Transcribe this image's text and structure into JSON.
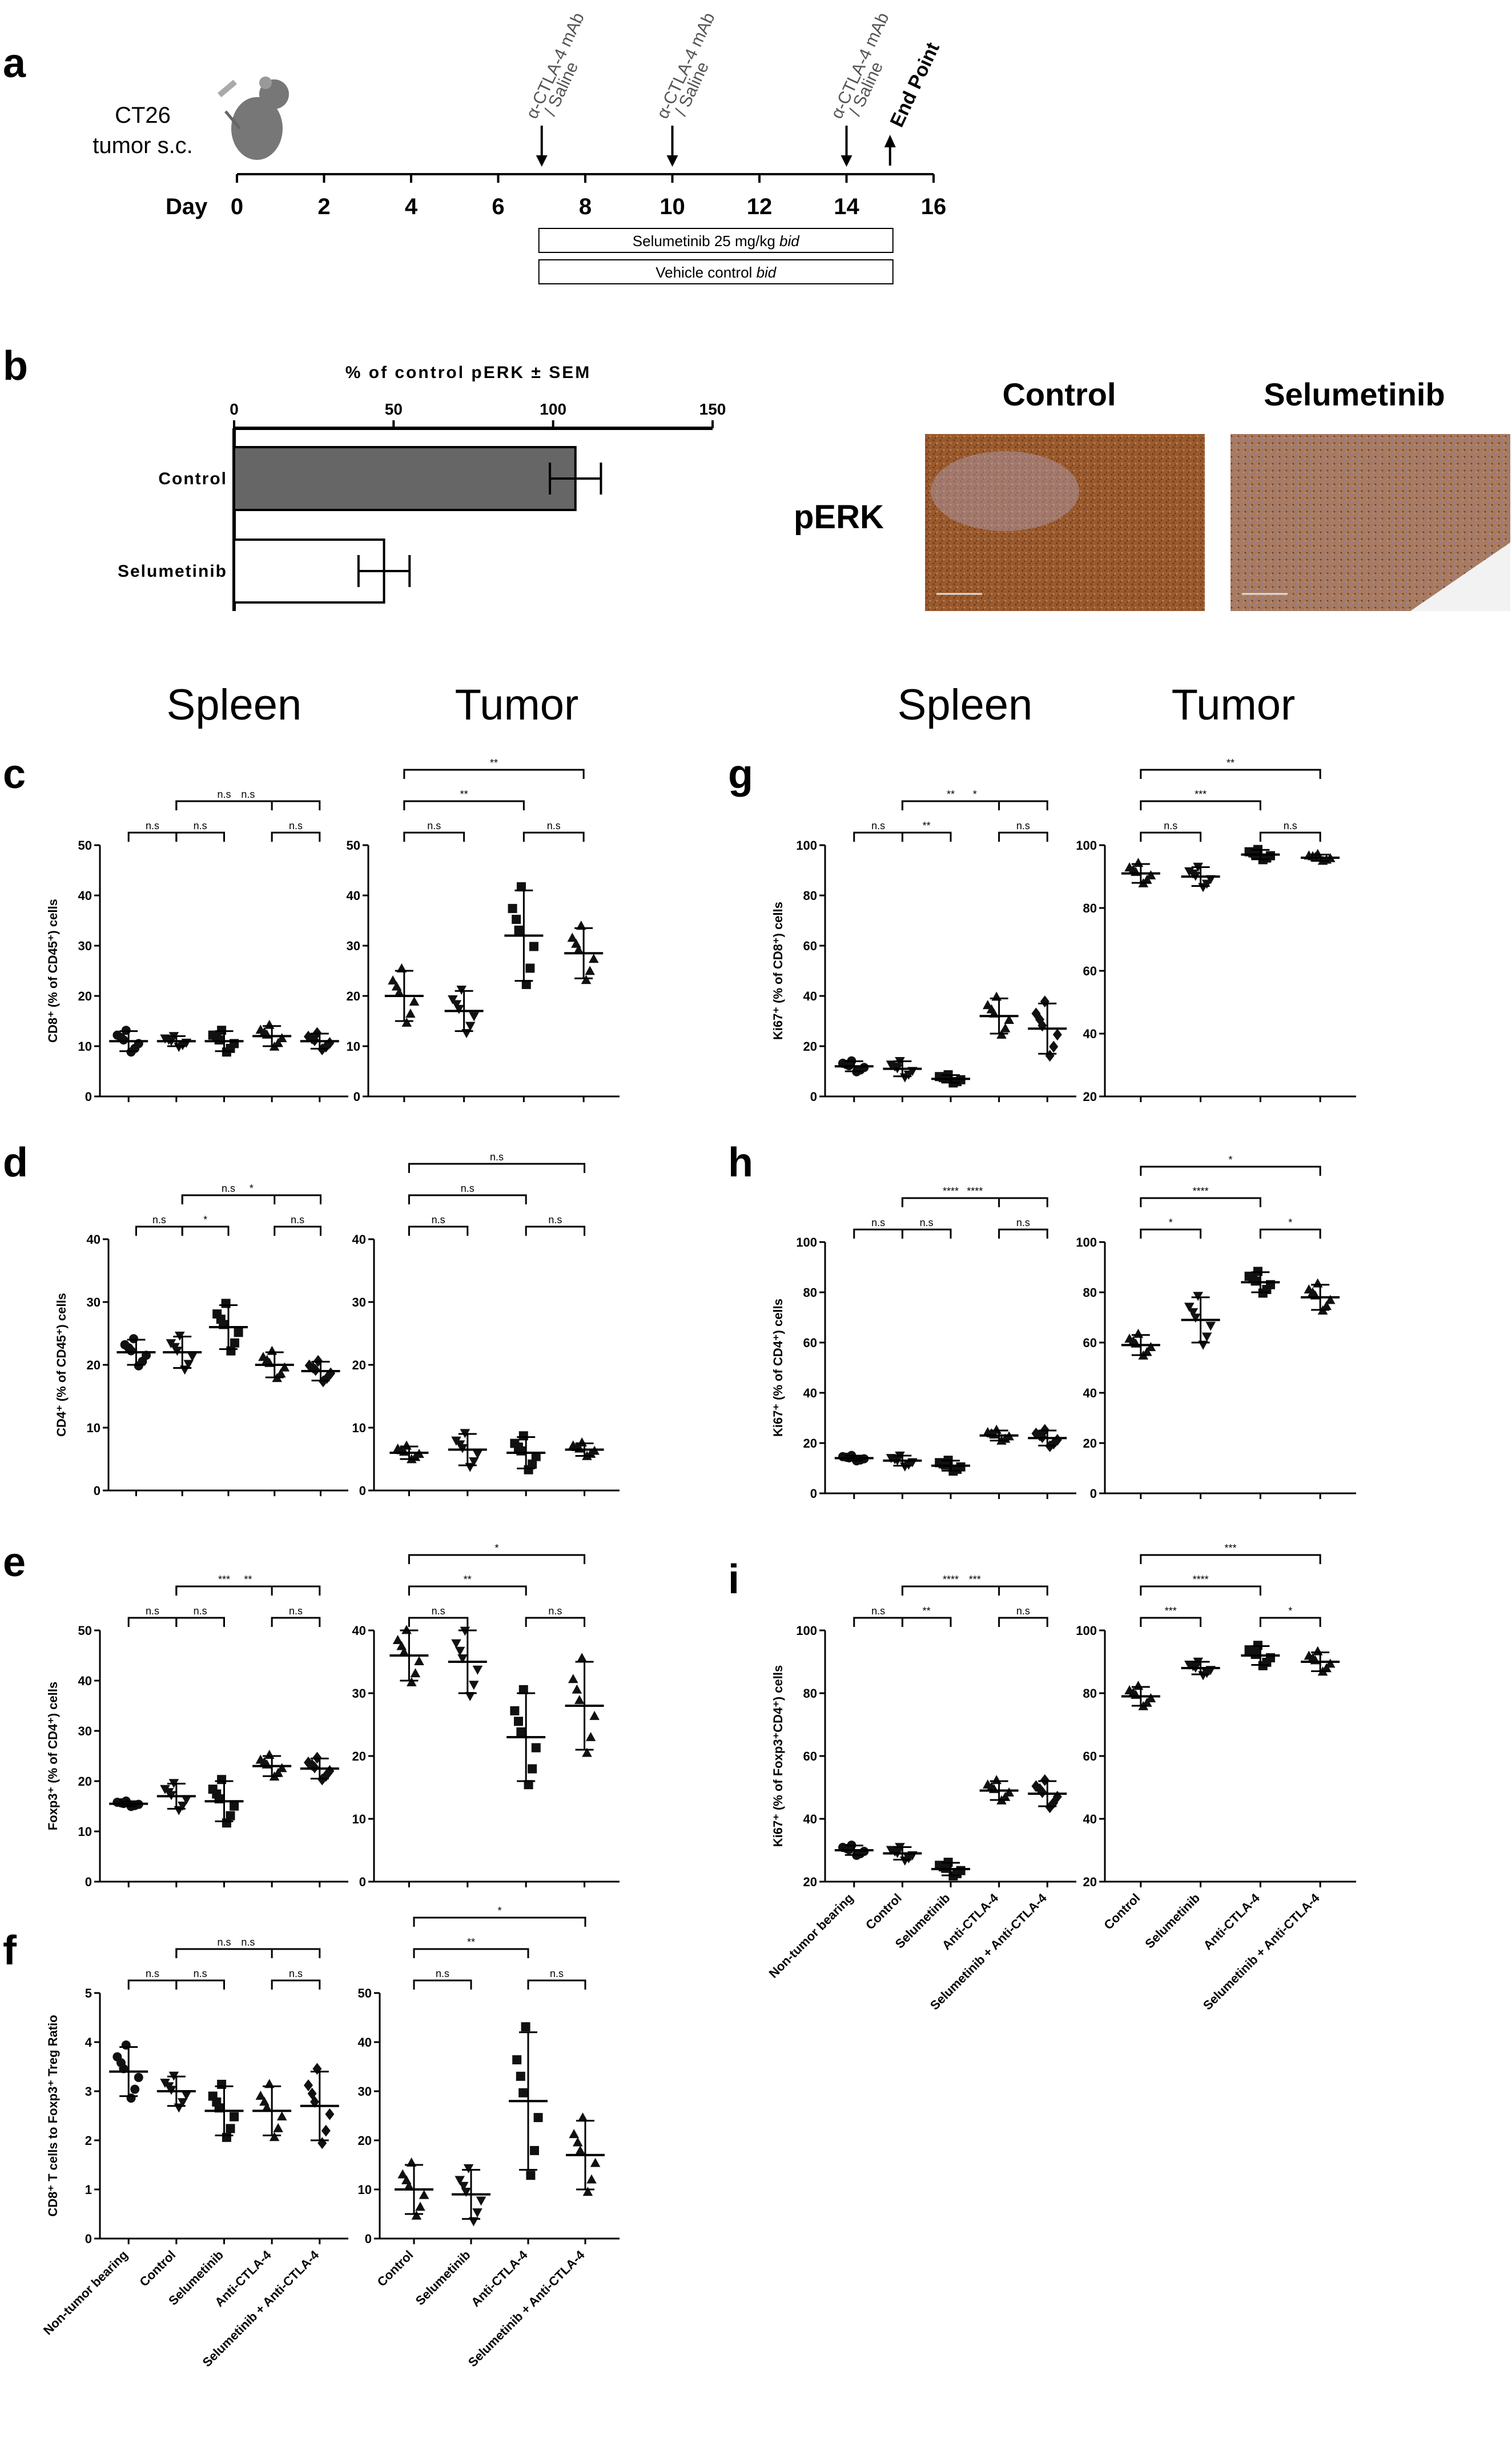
{
  "colors": {
    "bar_control": "#666666",
    "bar_selumetinib": "#ffffff",
    "ihc_brown": "#9a5a2e",
    "ink": "#000000"
  },
  "icons": {
    "mouse": "mouse-icon"
  },
  "panel_a": {
    "label": "a",
    "model": "CT26",
    "model_sub": "tumor s.c.",
    "day_label": "Day",
    "ticks": [
      "0",
      "2",
      "4",
      "6",
      "8",
      "10",
      "12",
      "14",
      "16"
    ],
    "doses": [
      {
        "day": 7,
        "text": "α-CTLA-4 mAb",
        "sub": "/ Saline"
      },
      {
        "day": 10,
        "text": "α-CTLA-4 mAb",
        "sub": "/ Saline"
      },
      {
        "day": 14,
        "text": "α-CTLA-4 mAb",
        "sub": "/ Saline"
      }
    ],
    "end_point": {
      "day": 15,
      "text": "End Point"
    },
    "bars": [
      {
        "text": "Selumetinib 25 mg/kg ",
        "italic": "bid",
        "start": 7,
        "end": 15
      },
      {
        "text": "Vehicle control ",
        "italic": "bid",
        "start": 7,
        "end": 15
      }
    ]
  },
  "panel_b": {
    "label": "b",
    "title": "% of control pERK ± SEM",
    "ticks": [
      "0",
      "50",
      "100",
      "150"
    ],
    "micro_row_label": "pERK",
    "micro_cols": [
      "Control",
      "Selumetinib"
    ]
  },
  "headers": {
    "spleen": "Spleen",
    "tumor": "Tumor"
  },
  "cat_spleen": [
    "Non-tumor bearing",
    "Control",
    "Selumetinib",
    "Anti-CTLA-4",
    "Selumetinib + Anti-CTLA-4"
  ],
  "cat_tumor": [
    "Control",
    "Selumetinib",
    "Anti-CTLA-4",
    "Selumetinib + Anti-CTLA-4"
  ],
  "chart_data": [
    {
      "type": "bar",
      "panel": "b",
      "title": "% of control pERK ± SEM",
      "categories": [
        "Control",
        "Selumetinib"
      ],
      "values": [
        107,
        47
      ],
      "sem": [
        8,
        8
      ],
      "xlim": [
        0,
        150
      ]
    },
    {
      "type": "scatter",
      "panel": "c",
      "tissue": "Spleen",
      "ylabel": "CD8⁺ (% of CD45⁺) cells",
      "ylim": [
        0,
        50
      ],
      "yticks": [
        0,
        10,
        20,
        30,
        40,
        50
      ],
      "categories": [
        "Non-tumor bearing",
        "Control",
        "Selumetinib",
        "Anti-CTLA-4",
        "Selumetinib + Anti-CTLA-4"
      ],
      "means": [
        11,
        11,
        11,
        12,
        11
      ],
      "sd": [
        2,
        1,
        2,
        2,
        1.5
      ],
      "brackets": [
        {
          "a": 0,
          "b": 1,
          "text": "n.s"
        },
        {
          "a": 1,
          "b": 2,
          "text": "n.s"
        },
        {
          "a": 1,
          "b": 3,
          "text": "n.s"
        },
        {
          "a": 3,
          "b": 4,
          "text": "n.s"
        },
        {
          "a": 1,
          "b": 4,
          "text": "n.s"
        }
      ]
    },
    {
      "type": "scatter",
      "panel": "c",
      "tissue": "Tumor",
      "ylim": [
        0,
        50
      ],
      "yticks": [
        0,
        10,
        20,
        30,
        40,
        50
      ],
      "categories": [
        "Control",
        "Selumetinib",
        "Anti-CTLA-4",
        "Selumetinib + Anti-CTLA-4"
      ],
      "means": [
        20,
        17,
        32,
        28.5
      ],
      "sd": [
        5,
        4,
        9,
        5
      ],
      "brackets": [
        {
          "a": 0,
          "b": 1,
          "text": "n.s"
        },
        {
          "a": 0,
          "b": 2,
          "text": "**"
        },
        {
          "a": 2,
          "b": 3,
          "text": "n.s"
        },
        {
          "a": 0,
          "b": 3,
          "text": "**"
        }
      ]
    },
    {
      "type": "scatter",
      "panel": "d",
      "tissue": "Spleen",
      "ylabel": "CD4⁺ (% of CD45⁺) cells",
      "ylim": [
        0,
        40
      ],
      "yticks": [
        0,
        10,
        20,
        30,
        40
      ],
      "categories": [
        "Non-tumor bearing",
        "Control",
        "Selumetinib",
        "Anti-CTLA-4",
        "Selumetinib + Anti-CTLA-4"
      ],
      "means": [
        22,
        22,
        26,
        20,
        19
      ],
      "sd": [
        2,
        2.5,
        3.5,
        2,
        1.5
      ],
      "brackets": [
        {
          "a": 0,
          "b": 1,
          "text": "n.s"
        },
        {
          "a": 1,
          "b": 2,
          "text": "*"
        },
        {
          "a": 1,
          "b": 3,
          "text": "n.s"
        },
        {
          "a": 3,
          "b": 4,
          "text": "n.s"
        },
        {
          "a": 1,
          "b": 4,
          "text": "*"
        }
      ]
    },
    {
      "type": "scatter",
      "panel": "d",
      "tissue": "Tumor",
      "ylim": [
        0,
        40
      ],
      "yticks": [
        0,
        10,
        20,
        30,
        40
      ],
      "categories": [
        "Control",
        "Selumetinib",
        "Anti-CTLA-4",
        "Selumetinib + Anti-CTLA-4"
      ],
      "means": [
        6,
        6.5,
        6,
        6.5
      ],
      "sd": [
        1,
        2.5,
        2.5,
        1
      ],
      "brackets": [
        {
          "a": 0,
          "b": 1,
          "text": "n.s"
        },
        {
          "a": 0,
          "b": 2,
          "text": "n.s"
        },
        {
          "a": 2,
          "b": 3,
          "text": "n.s"
        },
        {
          "a": 0,
          "b": 3,
          "text": "n.s"
        }
      ]
    },
    {
      "type": "scatter",
      "panel": "e",
      "tissue": "Spleen",
      "ylabel": "Foxp3⁺ (% of CD4⁺) cells",
      "ylim": [
        0,
        50
      ],
      "yticks": [
        0,
        10,
        20,
        30,
        40,
        50
      ],
      "categories": [
        "Non-tumor bearing",
        "Control",
        "Selumetinib",
        "Anti-CTLA-4",
        "Selumetinib + Anti-CTLA-4"
      ],
      "means": [
        15.5,
        17,
        16,
        23,
        22.5
      ],
      "sd": [
        0.5,
        2.5,
        4,
        2,
        2
      ],
      "brackets": [
        {
          "a": 0,
          "b": 1,
          "text": "n.s"
        },
        {
          "a": 1,
          "b": 2,
          "text": "n.s"
        },
        {
          "a": 1,
          "b": 3,
          "text": "***"
        },
        {
          "a": 3,
          "b": 4,
          "text": "n.s"
        },
        {
          "a": 1,
          "b": 4,
          "text": "**"
        }
      ]
    },
    {
      "type": "scatter",
      "panel": "e",
      "tissue": "Tumor",
      "ylim": [
        0,
        40
      ],
      "yticks": [
        0,
        10,
        20,
        30,
        40
      ],
      "categories": [
        "Control",
        "Selumetinib",
        "Anti-CTLA-4",
        "Selumetinib + Anti-CTLA-4"
      ],
      "means": [
        36,
        35,
        23,
        28
      ],
      "sd": [
        4,
        5,
        7,
        7
      ],
      "brackets": [
        {
          "a": 0,
          "b": 1,
          "text": "n.s"
        },
        {
          "a": 0,
          "b": 2,
          "text": "**"
        },
        {
          "a": 2,
          "b": 3,
          "text": "n.s"
        },
        {
          "a": 0,
          "b": 3,
          "text": "*"
        }
      ]
    },
    {
      "type": "scatter",
      "panel": "f",
      "tissue": "Spleen",
      "ylabel": "CD8⁺ T cells to Foxp3⁺ Treg Ratio",
      "ylim": [
        0,
        5
      ],
      "yticks": [
        0,
        1,
        2,
        3,
        4,
        5
      ],
      "categories": [
        "Non-tumor bearing",
        "Control",
        "Selumetinib",
        "Anti-CTLA-4",
        "Selumetinib + Anti-CTLA-4"
      ],
      "means": [
        3.4,
        3.0,
        2.6,
        2.6,
        2.7
      ],
      "sd": [
        0.5,
        0.3,
        0.5,
        0.5,
        0.7
      ],
      "brackets": [
        {
          "a": 0,
          "b": 1,
          "text": "n.s"
        },
        {
          "a": 1,
          "b": 2,
          "text": "n.s"
        },
        {
          "a": 1,
          "b": 3,
          "text": "n.s"
        },
        {
          "a": 3,
          "b": 4,
          "text": "n.s"
        },
        {
          "a": 1,
          "b": 4,
          "text": "n.s"
        }
      ]
    },
    {
      "type": "scatter",
      "panel": "f",
      "tissue": "Tumor",
      "ylim": [
        0,
        50
      ],
      "yticks": [
        0,
        10,
        20,
        30,
        40,
        50
      ],
      "categories": [
        "Control",
        "Selumetinib",
        "Anti-CTLA-4",
        "Selumetinib + Anti-CTLA-4"
      ],
      "means": [
        10,
        9,
        28,
        17
      ],
      "sd": [
        5,
        5,
        14,
        7
      ],
      "brackets": [
        {
          "a": 0,
          "b": 1,
          "text": "n.s"
        },
        {
          "a": 0,
          "b": 2,
          "text": "**"
        },
        {
          "a": 2,
          "b": 3,
          "text": "n.s"
        },
        {
          "a": 0,
          "b": 3,
          "text": "*"
        }
      ]
    },
    {
      "type": "scatter",
      "panel": "g",
      "tissue": "Spleen",
      "ylabel": "Ki67⁺ (% of CD8⁺) cells",
      "ylim": [
        0,
        100
      ],
      "yticks": [
        0,
        20,
        40,
        60,
        80,
        100
      ],
      "categories": [
        "Non-tumor bearing",
        "Control",
        "Selumetinib",
        "Anti-CTLA-4",
        "Selumetinib + Anti-CTLA-4"
      ],
      "means": [
        12,
        11,
        7,
        32,
        27
      ],
      "sd": [
        2,
        3,
        1.5,
        7,
        10
      ],
      "brackets": [
        {
          "a": 0,
          "b": 1,
          "text": "n.s"
        },
        {
          "a": 1,
          "b": 2,
          "text": "**"
        },
        {
          "a": 1,
          "b": 3,
          "text": "**"
        },
        {
          "a": 3,
          "b": 4,
          "text": "n.s"
        },
        {
          "a": 1,
          "b": 4,
          "text": "*"
        }
      ]
    },
    {
      "type": "scatter",
      "panel": "g",
      "tissue": "Tumor",
      "ylim": [
        20,
        100
      ],
      "yticks": [
        20,
        40,
        60,
        80,
        100
      ],
      "categories": [
        "Control",
        "Selumetinib",
        "Anti-CTLA-4",
        "Selumetinib + Anti-CTLA-4"
      ],
      "means": [
        91,
        90,
        97,
        96
      ],
      "sd": [
        3,
        3,
        1.5,
        1
      ],
      "brackets": [
        {
          "a": 0,
          "b": 1,
          "text": "n.s"
        },
        {
          "a": 0,
          "b": 2,
          "text": "***"
        },
        {
          "a": 2,
          "b": 3,
          "text": "n.s"
        },
        {
          "a": 0,
          "b": 3,
          "text": "**"
        }
      ]
    },
    {
      "type": "scatter",
      "panel": "h",
      "tissue": "Spleen",
      "ylabel": "Ki67⁺ (% of CD4⁺) cells",
      "ylim": [
        0,
        100
      ],
      "yticks": [
        0,
        20,
        40,
        60,
        80,
        100
      ],
      "categories": [
        "Non-tumor bearing",
        "Control",
        "Selumetinib",
        "Anti-CTLA-4",
        "Selumetinib + Anti-CTLA-4"
      ],
      "means": [
        14,
        13,
        11,
        23,
        22
      ],
      "sd": [
        1,
        2,
        2,
        2,
        3
      ],
      "brackets": [
        {
          "a": 0,
          "b": 1,
          "text": "n.s"
        },
        {
          "a": 1,
          "b": 2,
          "text": "n.s"
        },
        {
          "a": 1,
          "b": 3,
          "text": "****"
        },
        {
          "a": 3,
          "b": 4,
          "text": "n.s"
        },
        {
          "a": 1,
          "b": 4,
          "text": "****"
        }
      ]
    },
    {
      "type": "scatter",
      "panel": "h",
      "tissue": "Tumor",
      "ylim": [
        0,
        100
      ],
      "yticks": [
        0,
        20,
        40,
        60,
        80,
        100
      ],
      "categories": [
        "Control",
        "Selumetinib",
        "Anti-CTLA-4",
        "Selumetinib + Anti-CTLA-4"
      ],
      "means": [
        59,
        69,
        84,
        78
      ],
      "sd": [
        4,
        9,
        4,
        5
      ],
      "brackets": [
        {
          "a": 0,
          "b": 1,
          "text": "*"
        },
        {
          "a": 0,
          "b": 2,
          "text": "****"
        },
        {
          "a": 2,
          "b": 3,
          "text": "*"
        },
        {
          "a": 0,
          "b": 3,
          "text": "*"
        }
      ]
    },
    {
      "type": "scatter",
      "panel": "i",
      "tissue": "Spleen",
      "ylabel": "Ki67⁺ (% of Foxp3⁺CD4⁺) cells",
      "ylim": [
        20,
        100
      ],
      "yticks": [
        20,
        40,
        60,
        80,
        100
      ],
      "categories": [
        "Non-tumor bearing",
        "Control",
        "Selumetinib",
        "Anti-CTLA-4",
        "Selumetinib + Anti-CTLA-4"
      ],
      "means": [
        30,
        29,
        24,
        49,
        48
      ],
      "sd": [
        1.5,
        2,
        2,
        3,
        4
      ],
      "brackets": [
        {
          "a": 0,
          "b": 1,
          "text": "n.s"
        },
        {
          "a": 1,
          "b": 2,
          "text": "**"
        },
        {
          "a": 1,
          "b": 3,
          "text": "****"
        },
        {
          "a": 3,
          "b": 4,
          "text": "n.s"
        },
        {
          "a": 1,
          "b": 4,
          "text": "***"
        }
      ]
    },
    {
      "type": "scatter",
      "panel": "i",
      "tissue": "Tumor",
      "ylim": [
        20,
        100
      ],
      "yticks": [
        20,
        40,
        60,
        80,
        100
      ],
      "categories": [
        "Control",
        "Selumetinib",
        "Anti-CTLA-4",
        "Selumetinib + Anti-CTLA-4"
      ],
      "means": [
        79,
        88,
        92,
        90
      ],
      "sd": [
        3,
        2,
        3,
        3
      ],
      "brackets": [
        {
          "a": 0,
          "b": 1,
          "text": "***"
        },
        {
          "a": 0,
          "b": 2,
          "text": "****"
        },
        {
          "a": 2,
          "b": 3,
          "text": "*"
        },
        {
          "a": 0,
          "b": 3,
          "text": "***"
        }
      ]
    }
  ]
}
